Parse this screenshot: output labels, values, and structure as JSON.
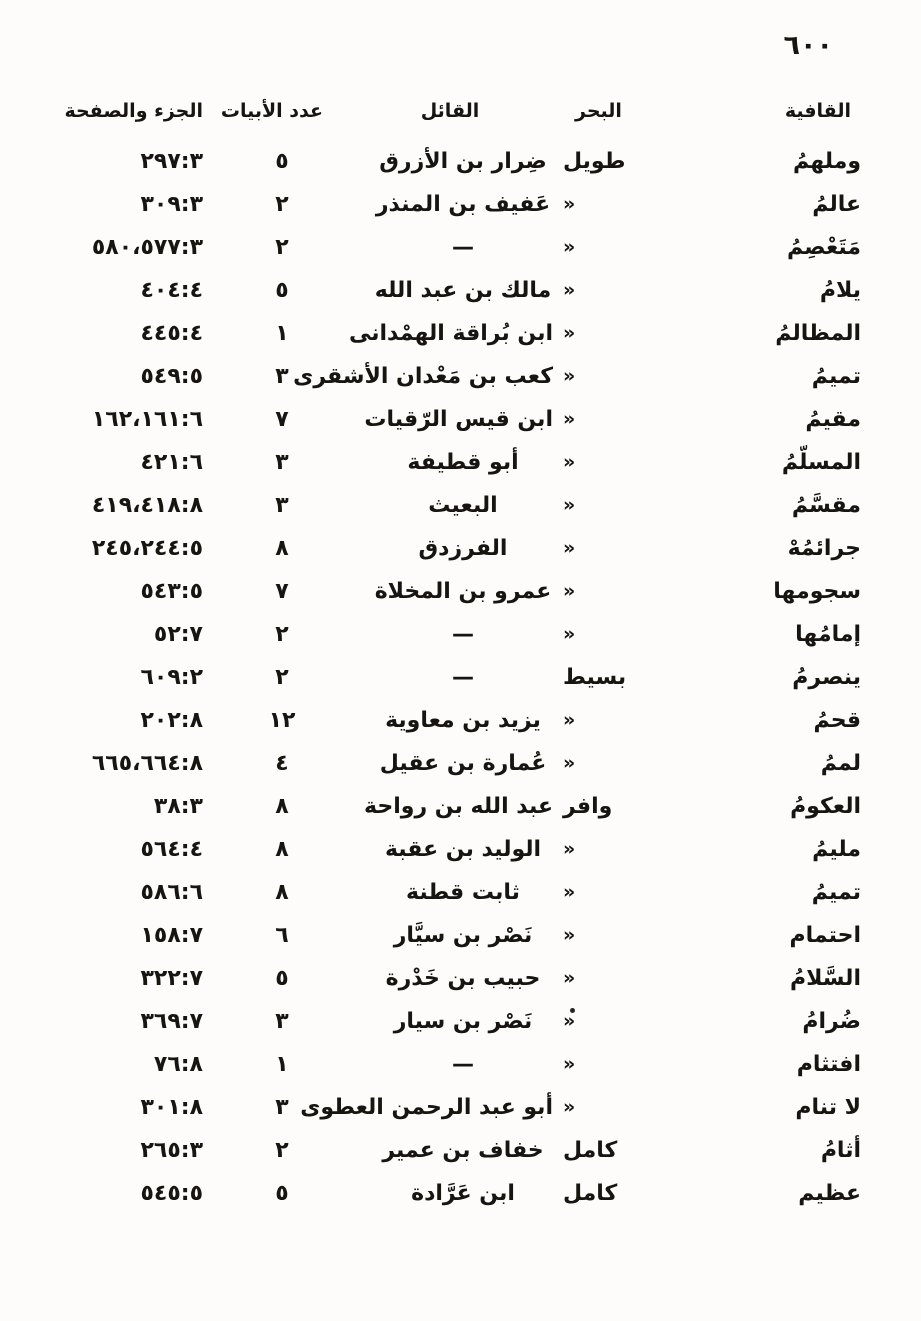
{
  "page": {
    "page_number": "٦٠٠"
  },
  "table": {
    "headers": {
      "qafiya": "القافية",
      "bahr": "البحر",
      "qail": "القائل",
      "abyat": "عدد الأبيات",
      "juz_safha": "الجزء والصفحة"
    },
    "ditto_mark": "«",
    "rows": [
      {
        "qafiya": "وملهمُ",
        "bahr": "طويل",
        "qail": "ضِرار بن الأزرق",
        "abyat": "٥",
        "ref": "٢٩٧:٣"
      },
      {
        "qafiya": "عالمُ",
        "bahr": "«",
        "qail": "عَفيف بن المنذر",
        "abyat": "٢",
        "ref": "٣٠٩:٣"
      },
      {
        "qafiya": "مَتَعْصِمُ",
        "bahr": "«",
        "qail": "—",
        "abyat": "٢",
        "ref": "٥٨٠،٥٧٧:٣"
      },
      {
        "qafiya": "يلامُ",
        "bahr": "«",
        "qail": "مالك بن عبد الله",
        "abyat": "٥",
        "ref": "٤٠٤:٤"
      },
      {
        "qafiya": "المظالمُ",
        "bahr": "«",
        "qail": "ابن بُراقة الهمْدانى",
        "abyat": "١",
        "ref": "٤٤٥:٤"
      },
      {
        "qafiya": "تميمُ",
        "bahr": "«",
        "qail": "كعب بن مَعْدان الأشقرى",
        "abyat": "٣",
        "ref": "٥٤٩:٥"
      },
      {
        "qafiya": "مقيمُ",
        "bahr": "«",
        "qail": "ابن قيس الرّقيات",
        "abyat": "٧",
        "ref": "١٦٢،١٦١:٦"
      },
      {
        "qafiya": "المسلّمُ",
        "bahr": "«",
        "qail": "أبو قطيفة",
        "abyat": "٣",
        "ref": "٤٢١:٦"
      },
      {
        "qafiya": "مقسَّمُ",
        "bahr": "«",
        "qail": "البعيث",
        "abyat": "٣",
        "ref": "٤١٩،٤١٨:٨"
      },
      {
        "qafiya": "جرائمُهْ",
        "bahr": "«",
        "qail": "الفرزدق",
        "abyat": "٨",
        "ref": "٢٤٥،٢٤٤:٥"
      },
      {
        "qafiya": "سجومها",
        "bahr": "«",
        "qail": "عمرو بن المخلاة",
        "abyat": "٧",
        "ref": "٥٤٣:٥"
      },
      {
        "qafiya": "إمامُها",
        "bahr": "«",
        "qail": "—",
        "abyat": "٢",
        "ref": "٥٢:٧"
      },
      {
        "qafiya": "ينصرمُ",
        "bahr": "بسيط",
        "qail": "—",
        "abyat": "٢",
        "ref": "٦٠٩:٢"
      },
      {
        "qafiya": "قحمُ",
        "bahr": "«",
        "qail": "يزيد بن معاوية",
        "abyat": "١٢",
        "ref": "٢٠٢:٨"
      },
      {
        "qafiya": "لممُ",
        "bahr": "«",
        "qail": "عُمارة بن عقيل",
        "abyat": "٤",
        "ref": "٦٦٥،٦٦٤:٨"
      },
      {
        "qafiya": "العكومُ",
        "bahr": "وافر",
        "qail": "عبد الله بن رواحة",
        "abyat": "٨",
        "ref": "٣٨:٣"
      },
      {
        "qafiya": "مليمُ",
        "bahr": "«",
        "qail": "الوليد بن عقبة",
        "abyat": "٨",
        "ref": "٥٦٤:٤"
      },
      {
        "qafiya": "تميمُ",
        "bahr": "«",
        "qail": "ثابت قطنة",
        "abyat": "٨",
        "ref": "٥٨٦:٦"
      },
      {
        "qafiya": "احتمام",
        "bahr": "«",
        "qail": "نَصْر بن سيَّار",
        "abyat": "٦",
        "ref": "١٥٨:٧"
      },
      {
        "qafiya": "السَّلامُ",
        "bahr": "«",
        "qail": "حبيب بن خَدْرة",
        "abyat": "٥",
        "ref": "٣٢٢:٧"
      },
      {
        "qafiya": "ضُرامُ",
        "bahr": "«",
        "qail": "نَصْر بن سيار",
        "abyat": "٣",
        "ref": "٣٦٩:٧"
      },
      {
        "qafiya": "افتثام",
        "bahr": "«",
        "qail": "—",
        "abyat": "١",
        "ref": "٧٦:٨"
      },
      {
        "qafiya": "لا تنام",
        "bahr": "«",
        "qail": "أبو عبد الرحمن العطوى",
        "abyat": "٣",
        "ref": "٣٠١:٨"
      },
      {
        "qafiya": "أثامُ",
        "bahr": "كامل",
        "qail": "خفاف بن عمير",
        "abyat": "٢",
        "ref": "٢٦٥:٣"
      },
      {
        "qafiya": "عظيم",
        "bahr": "كامل",
        "qail": "ابن عَرَّادة",
        "abyat": "٥",
        "ref": "٥٤٥:٥"
      }
    ]
  }
}
